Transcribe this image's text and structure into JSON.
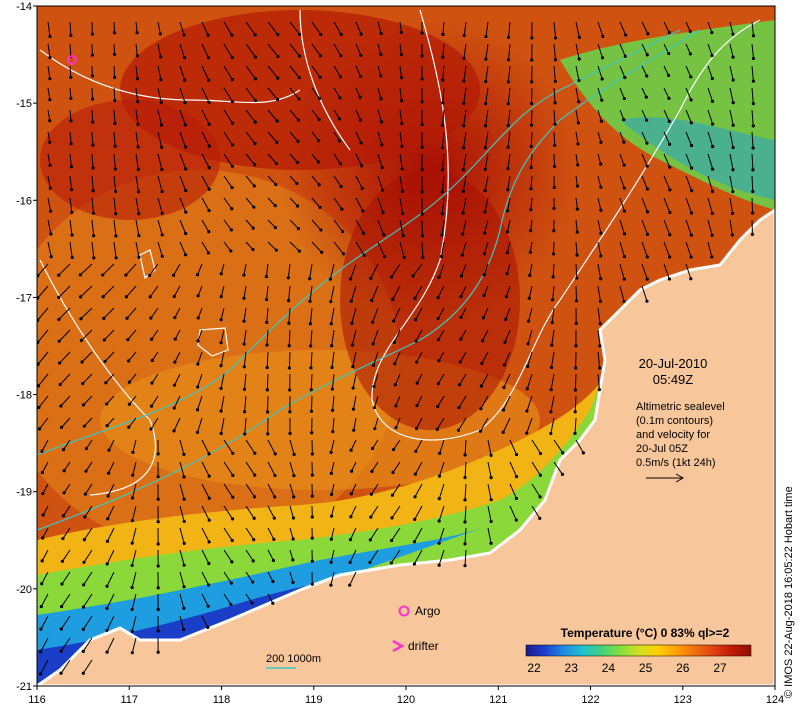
{
  "axes": {
    "x_ticks": [
      "116",
      "117",
      "118",
      "119",
      "120",
      "121",
      "122",
      "123",
      "124"
    ],
    "y_ticks": [
      "-14",
      "-15",
      "-16",
      "-17",
      "-18",
      "-19",
      "-20",
      "-21"
    ]
  },
  "map": {
    "lon_range": [
      116,
      124
    ],
    "lat_range": [
      -21,
      -14
    ],
    "colors": {
      "land": "#f7c79b",
      "contour": "#ffffff",
      "isobath": "#3ec8c0",
      "argo": "#ff33cc",
      "drifter": "#ff33cc",
      "arrow": "#000000"
    }
  },
  "datetime": {
    "date": "20-Jul-2010",
    "time": "05:49Z"
  },
  "description": {
    "line1": "Altimetric sealevel",
    "line2": "(0.1m contours)",
    "line3": "and velocity for",
    "line4": "20-Jul 05Z",
    "line5": "0.5m/s (1kt 24h)"
  },
  "legend": {
    "argo_label": "Argo",
    "drifter_label": "drifter",
    "isobath_label": "200  1000m"
  },
  "colorbar": {
    "title": "Temperature (°C) 0 83% ql>=2",
    "ticks": [
      "22",
      "23",
      "24",
      "25",
      "26",
      "27"
    ],
    "colors": [
      "#1a1a8c",
      "#1f3fd0",
      "#1f8ae0",
      "#20c0d0",
      "#40d080",
      "#80e040",
      "#d0e020",
      "#ffd000",
      "#ffa000",
      "#f07010",
      "#e04010",
      "#c01808",
      "#901000"
    ]
  },
  "credit": "© IMOS 22-Aug-2018 16:05:22 Hobart time"
}
